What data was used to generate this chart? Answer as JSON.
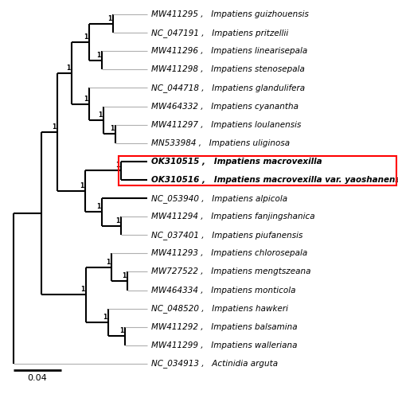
{
  "taxa": [
    [
      "MW411295 ,",
      "Impatiens guizhouensis"
    ],
    [
      "NC_047191 ,",
      "Impatiens pritzellii"
    ],
    [
      "MW411296 ,",
      "Impatiens linearisepala"
    ],
    [
      "MW411298 ,",
      "Impatiens stenosepala"
    ],
    [
      "NC_044718 ,",
      "Impatiens glandulifera"
    ],
    [
      "MW464332 ,",
      "Impatiens cyanantha"
    ],
    [
      "MW411297 ,",
      "Impatiens loulanensis"
    ],
    [
      "MN533984 ,",
      "Impatiens uliginosa"
    ],
    [
      "OK310515 ,",
      "Impatiens macrovexilla"
    ],
    [
      "OK310516 ,",
      "Impatiens macrovexilla var. yaoshanensis"
    ],
    [
      "NC_053940 ,",
      "Impatiens alpicola"
    ],
    [
      "MW411294 ,",
      "Impatiens fanjingshanica"
    ],
    [
      "NC_037401 ,",
      "Impatiens piufanensis"
    ],
    [
      "MW411293 ,",
      "Impatiens chlorosepala"
    ],
    [
      "MW727522 ,",
      "Impatiens mengtszeana"
    ],
    [
      "MW464334 ,",
      "Impatiens monticola"
    ],
    [
      "NC_048520 ,",
      "Impatiens hawkeri"
    ],
    [
      "MW411292 ,",
      "Impatiens balsamina"
    ],
    [
      "MW411299 ,",
      "Impatiens walleriana"
    ],
    [
      "NC_034913 ,",
      "Actinidia arguta"
    ]
  ],
  "highlighted_indices": [
    8,
    9
  ],
  "scale_bar_label": "0.04",
  "bg_color": "#ffffff",
  "tree_color": "#000000",
  "leaf_color": "#b0b0b0",
  "highlight_color": "#000000",
  "red_color": "#ff0000",
  "label_fontsize": 7.5,
  "bs_fontsize": 5.5,
  "scale_fontsize": 8.0
}
